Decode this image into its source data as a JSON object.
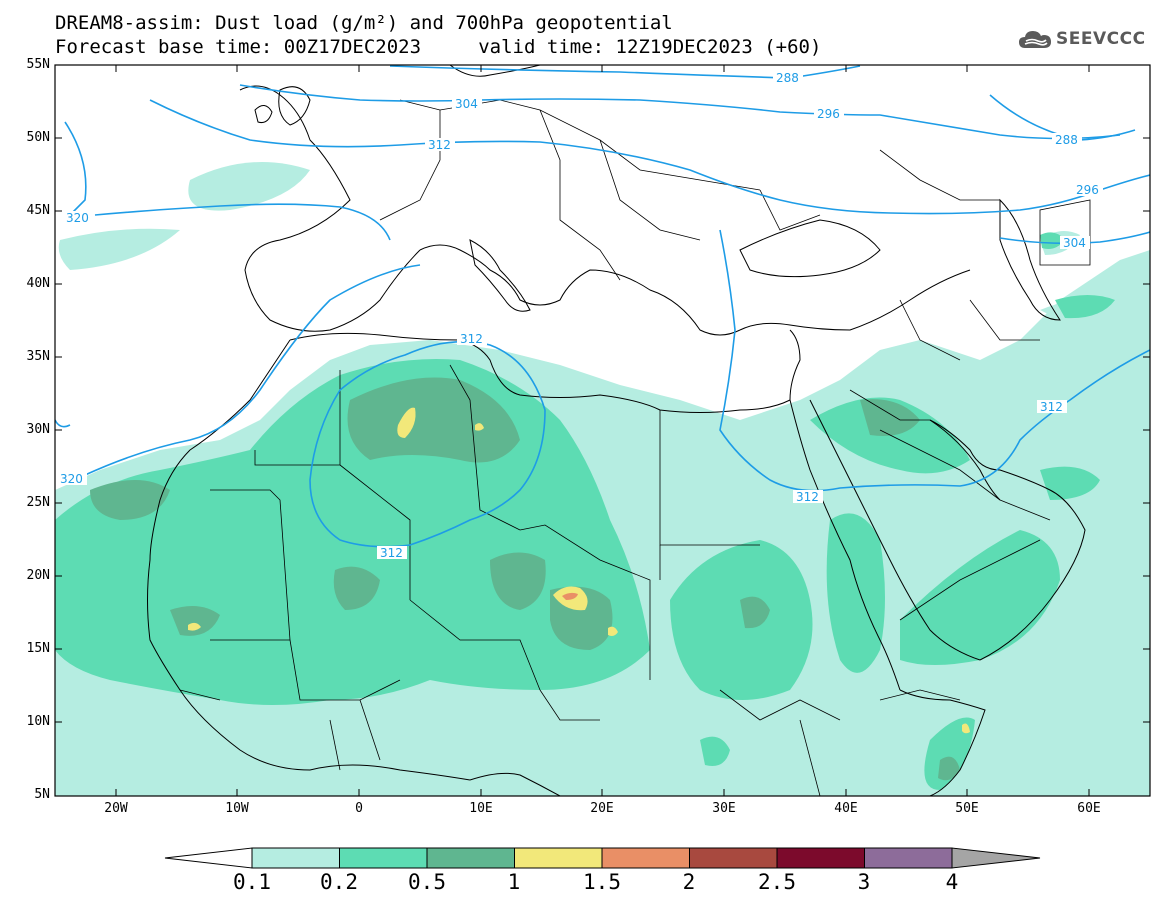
{
  "title_line1": "DREAM8-assim: Dust load (g/m²) and 700hPa geopotential",
  "title_line2": "Forecast base time: 00Z17DEC2023     valid time: 12Z19DEC2023 (+60)",
  "logo": {
    "text": "SEEVCCC",
    "icon": "cloud-icon"
  },
  "lat_labels": [
    "55N",
    "50N",
    "45N",
    "40N",
    "35N",
    "30N",
    "25N",
    "20N",
    "15N",
    "10N",
    "5N"
  ],
  "lon_labels": [
    "20W",
    "10W",
    "0",
    "10E",
    "20E",
    "30E",
    "40E",
    "50E",
    "60E"
  ],
  "contours": [
    {
      "label": "288"
    },
    {
      "label": "296"
    },
    {
      "label": "304"
    },
    {
      "label": "312"
    },
    {
      "label": "320"
    },
    {
      "label": "288"
    },
    {
      "label": "296"
    },
    {
      "label": "304"
    },
    {
      "label": "312"
    },
    {
      "label": "312"
    },
    {
      "label": "312"
    },
    {
      "label": "320"
    }
  ],
  "colorbar": {
    "labels": [
      "0.1",
      "0.2",
      "0.5",
      "1",
      "1.5",
      "2",
      "2.5",
      "3",
      "4"
    ],
    "colors": [
      "#b5ede1",
      "#5ddcb3",
      "#5fb690",
      "#f2e87a",
      "#e98f66",
      "#a8493f",
      "#7c0a2c",
      "#8d6c9a"
    ],
    "extend_low_color": "#ffffff",
    "extend_high_color": "#a5a5a5"
  },
  "map_colors": {
    "contour": "#1e9ce6",
    "border": "#000000"
  }
}
